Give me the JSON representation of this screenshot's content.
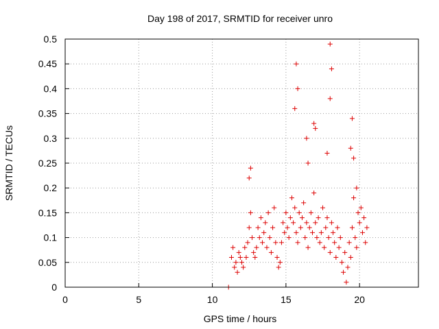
{
  "chart_data": {
    "type": "scatter",
    "title": "Day 198 of 2017, SRMTID for receiver unro",
    "xlabel": "GPS time / hours",
    "ylabel": "SRMTID / TECUs",
    "xlim": [
      0,
      24
    ],
    "ylim": [
      0,
      0.5
    ],
    "xticks": [
      "0",
      "5",
      "10",
      "15",
      "20"
    ],
    "yticks": [
      "0",
      "0.05",
      "0.1",
      "0.15",
      "0.2",
      "0.25",
      "0.3",
      "0.35",
      "0.4",
      "0.45",
      "0.5"
    ],
    "grid": true,
    "marker": "+",
    "color": "#dd0000",
    "series": [
      {
        "x": [
          11.1,
          11.3,
          11.4,
          11.5,
          11.6,
          11.7,
          11.8,
          11.9,
          12.0,
          12.1,
          12.2,
          12.3,
          12.4,
          12.5,
          12.6,
          12.7,
          12.8,
          12.9,
          13.0,
          13.1,
          13.2,
          13.3,
          13.4,
          13.5,
          13.6,
          13.7,
          13.8,
          13.9,
          14.0,
          14.1,
          14.2,
          14.3,
          14.4,
          14.5,
          14.6,
          14.7,
          14.8,
          14.9,
          15.0,
          15.1,
          15.2,
          15.3,
          15.4,
          15.5,
          15.6,
          15.7,
          15.8,
          15.9,
          16.0,
          16.1,
          16.2,
          16.3,
          16.4,
          16.5,
          16.6,
          16.7,
          16.8,
          16.9,
          17.0,
          17.1,
          17.2,
          17.3,
          17.4,
          17.5,
          17.6,
          17.7,
          17.8,
          17.9,
          18.0,
          18.1,
          18.2,
          18.3,
          18.4,
          18.5,
          18.6,
          18.7,
          18.8,
          18.9,
          19.0,
          19.1,
          19.2,
          19.3,
          19.4,
          19.5,
          19.6,
          19.7,
          19.8,
          19.9,
          20.0,
          20.1,
          20.2,
          20.3,
          20.4,
          20.5,
          15.7,
          15.8,
          16.4,
          16.9,
          18.0,
          18.1,
          18.0,
          19.5,
          19.6,
          19.4,
          15.6,
          16.5,
          17.0,
          17.8,
          19.8,
          12.5,
          12.6
        ],
        "y": [
          0.0,
          0.06,
          0.08,
          0.04,
          0.05,
          0.03,
          0.07,
          0.06,
          0.05,
          0.04,
          0.08,
          0.06,
          0.09,
          0.12,
          0.15,
          0.1,
          0.07,
          0.06,
          0.08,
          0.12,
          0.1,
          0.14,
          0.09,
          0.11,
          0.13,
          0.08,
          0.15,
          0.1,
          0.07,
          0.12,
          0.16,
          0.09,
          0.06,
          0.04,
          0.05,
          0.09,
          0.13,
          0.11,
          0.15,
          0.12,
          0.1,
          0.14,
          0.18,
          0.13,
          0.16,
          0.11,
          0.09,
          0.15,
          0.12,
          0.14,
          0.17,
          0.1,
          0.13,
          0.08,
          0.12,
          0.15,
          0.11,
          0.19,
          0.13,
          0.1,
          0.14,
          0.09,
          0.11,
          0.16,
          0.08,
          0.12,
          0.14,
          0.1,
          0.07,
          0.13,
          0.11,
          0.09,
          0.06,
          0.12,
          0.08,
          0.1,
          0.05,
          0.03,
          0.07,
          0.01,
          0.04,
          0.09,
          0.06,
          0.12,
          0.18,
          0.1,
          0.08,
          0.15,
          0.13,
          0.16,
          0.11,
          0.14,
          0.09,
          0.12,
          0.45,
          0.4,
          0.3,
          0.33,
          0.49,
          0.44,
          0.38,
          0.34,
          0.26,
          0.28,
          0.36,
          0.25,
          0.32,
          0.27,
          0.2,
          0.22,
          0.24
        ]
      }
    ]
  }
}
